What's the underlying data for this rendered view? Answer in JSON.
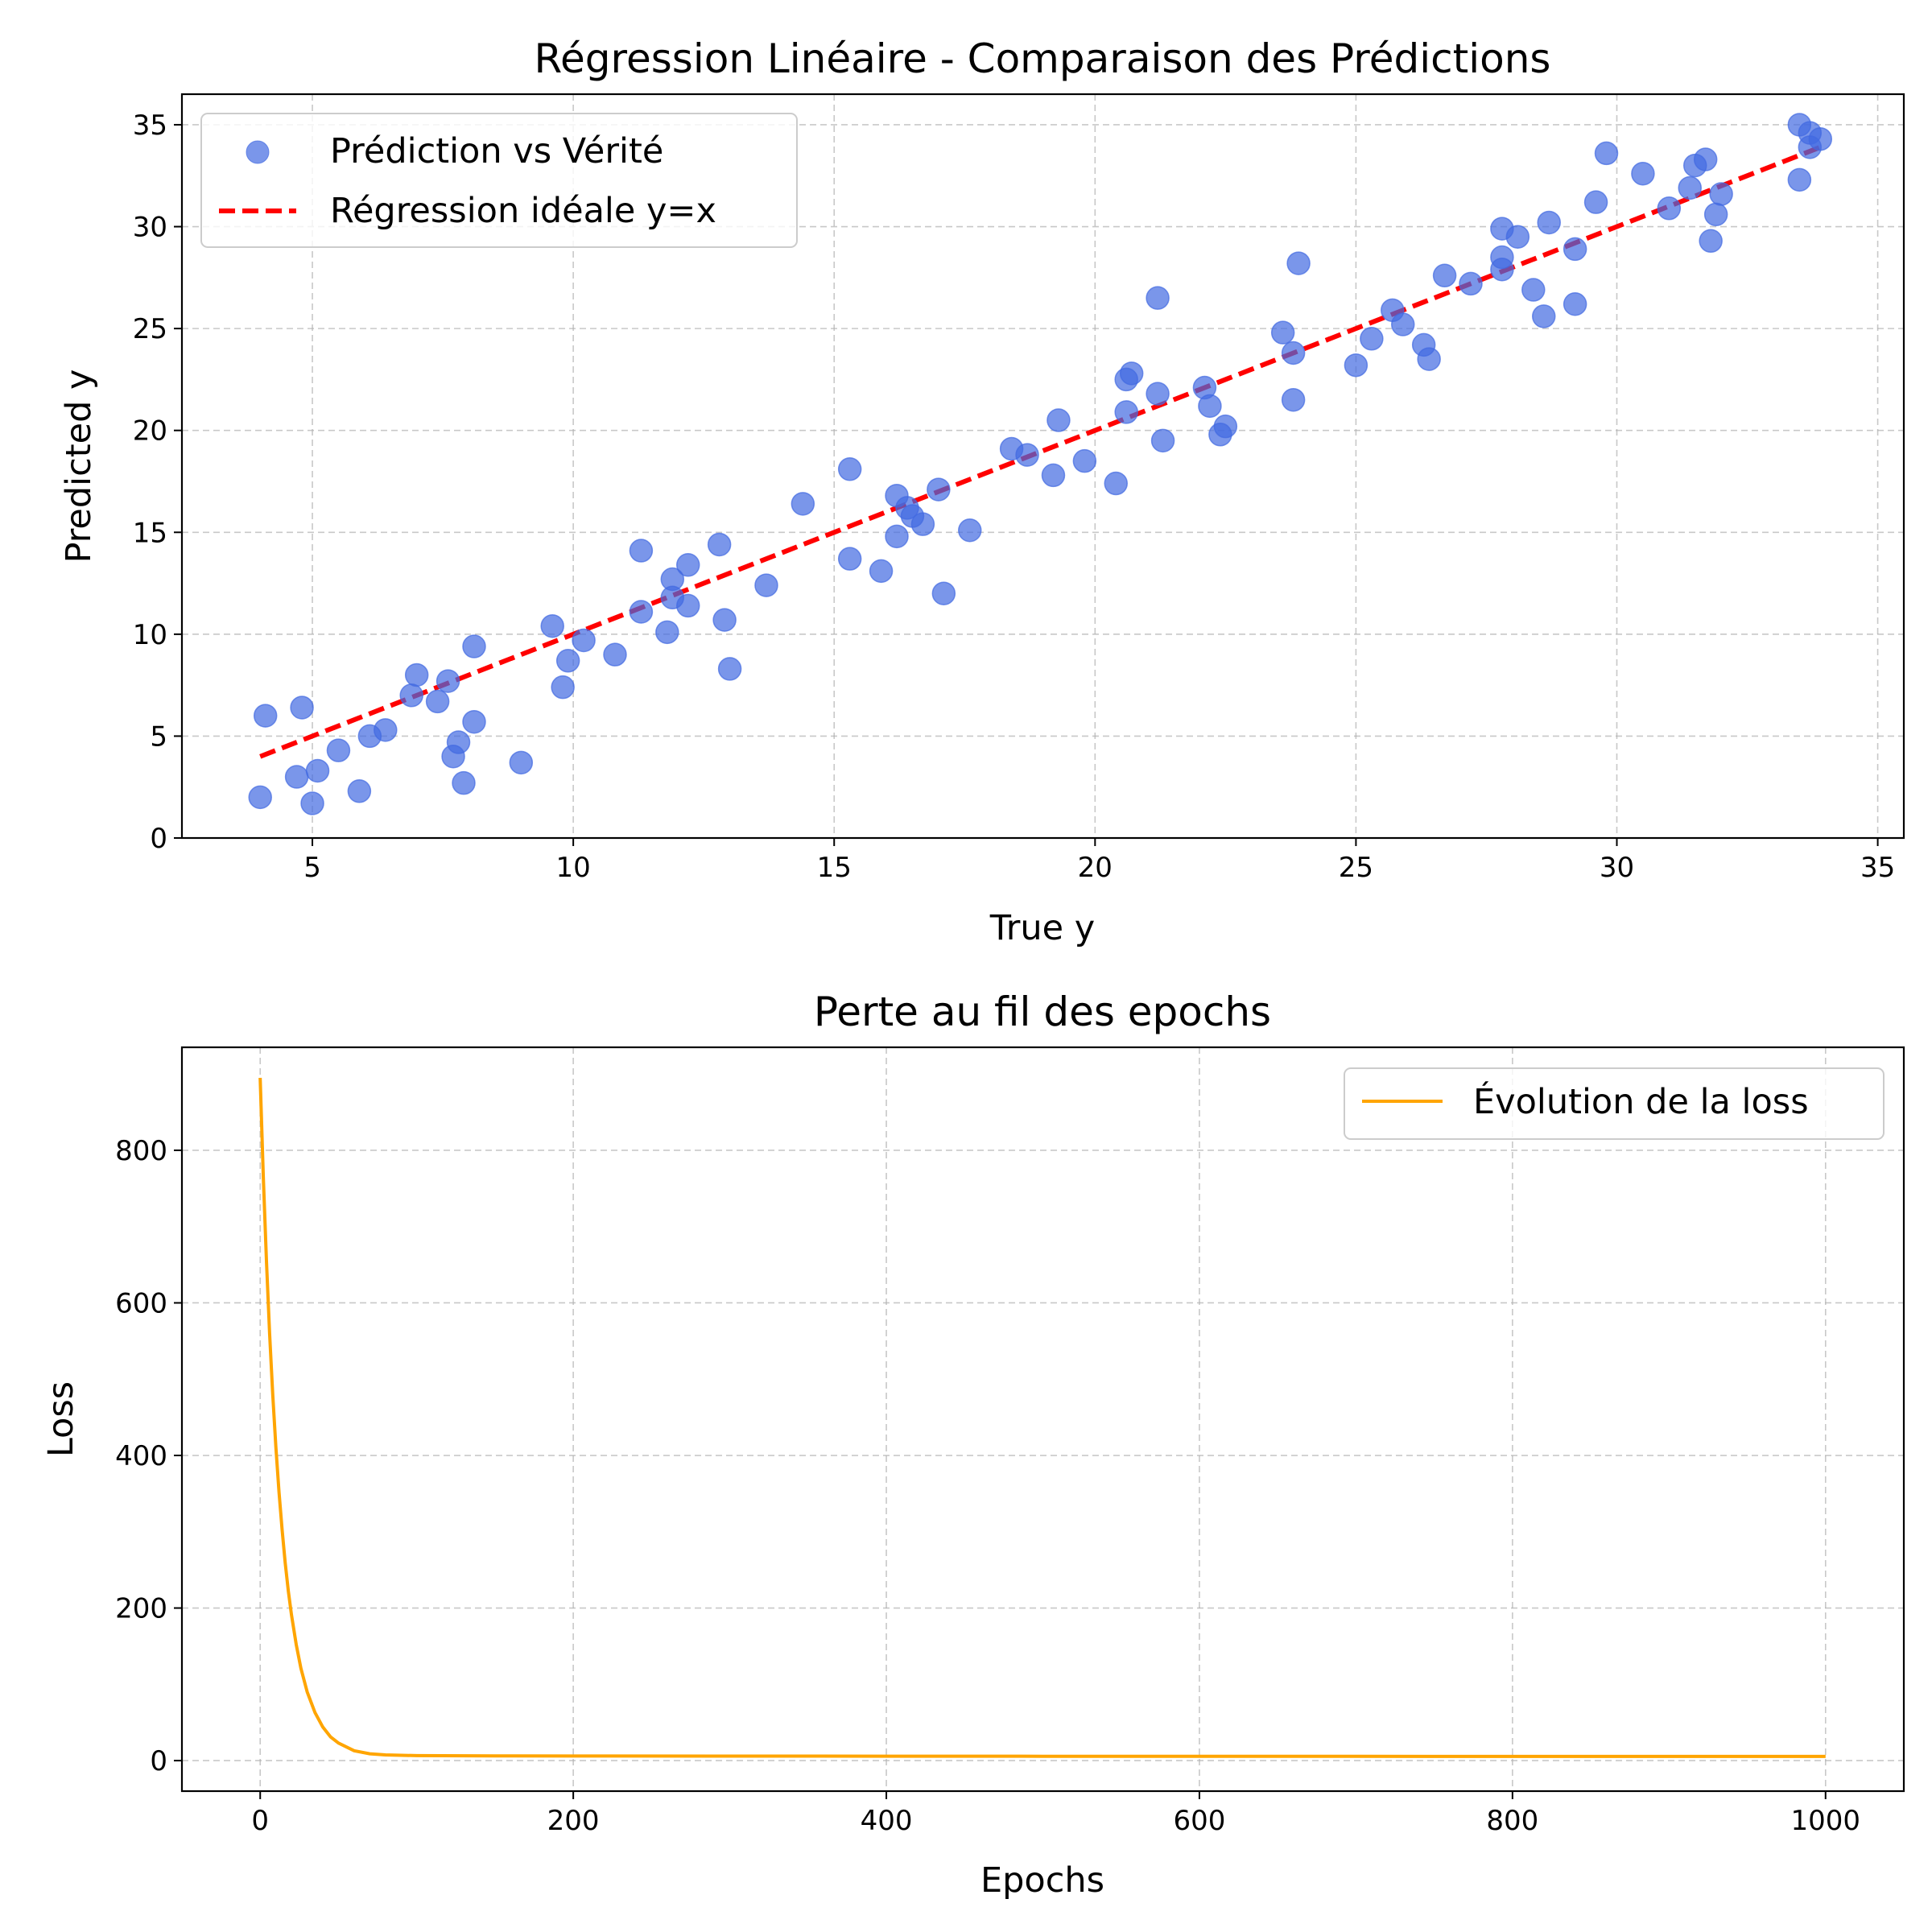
{
  "chart_data": [
    {
      "type": "scatter",
      "title": "Régression Linéaire - Comparaison des Prédictions",
      "xlabel": "True y",
      "ylabel": "Predicted y",
      "xlim": [
        2.5,
        35.5
      ],
      "ylim": [
        0,
        36.5
      ],
      "xticks": [
        5,
        10,
        15,
        20,
        25,
        30,
        35
      ],
      "yticks": [
        0,
        5,
        10,
        15,
        20,
        25,
        30,
        35
      ],
      "grid": true,
      "legend_position": "top-left",
      "series": [
        {
          "name": "Prédiction vs Vérité",
          "kind": "scatter",
          "color": "#4169e1",
          "points": [
            [
              4.0,
              2.0
            ],
            [
              4.1,
              6.0
            ],
            [
              4.7,
              3.0
            ],
            [
              4.8,
              6.4
            ],
            [
              5.0,
              1.7
            ],
            [
              5.1,
              3.3
            ],
            [
              5.5,
              4.3
            ],
            [
              5.9,
              2.3
            ],
            [
              6.1,
              5.0
            ],
            [
              6.4,
              5.3
            ],
            [
              6.9,
              7.0
            ],
            [
              7.0,
              8.0
            ],
            [
              7.4,
              6.7
            ],
            [
              7.6,
              7.7
            ],
            [
              7.7,
              4.0
            ],
            [
              7.8,
              4.7
            ],
            [
              7.9,
              2.7
            ],
            [
              8.1,
              9.4
            ],
            [
              8.1,
              5.7
            ],
            [
              9.0,
              3.7
            ],
            [
              9.6,
              10.4
            ],
            [
              9.8,
              7.4
            ],
            [
              9.9,
              8.7
            ],
            [
              10.2,
              9.7
            ],
            [
              10.8,
              9.0
            ],
            [
              11.3,
              14.1
            ],
            [
              11.3,
              11.1
            ],
            [
              11.8,
              10.1
            ],
            [
              11.9,
              12.7
            ],
            [
              11.9,
              11.8
            ],
            [
              12.2,
              13.4
            ],
            [
              12.2,
              11.4
            ],
            [
              12.8,
              14.4
            ],
            [
              12.9,
              10.7
            ],
            [
              13.0,
              8.3
            ],
            [
              13.7,
              12.4
            ],
            [
              14.4,
              16.4
            ],
            [
              15.3,
              18.1
            ],
            [
              15.3,
              13.7
            ],
            [
              15.9,
              13.1
            ],
            [
              16.2,
              16.8
            ],
            [
              16.2,
              14.8
            ],
            [
              16.4,
              16.2
            ],
            [
              16.5,
              15.8
            ],
            [
              16.7,
              15.4
            ],
            [
              17.0,
              17.1
            ],
            [
              17.1,
              12.0
            ],
            [
              17.6,
              15.1
            ],
            [
              18.4,
              19.1
            ],
            [
              18.7,
              18.8
            ],
            [
              19.2,
              17.8
            ],
            [
              19.3,
              20.5
            ],
            [
              19.8,
              18.5
            ],
            [
              20.4,
              17.4
            ],
            [
              20.6,
              22.5
            ],
            [
              20.6,
              20.9
            ],
            [
              20.7,
              22.8
            ],
            [
              21.2,
              26.5
            ],
            [
              21.2,
              21.8
            ],
            [
              21.3,
              19.5
            ],
            [
              22.1,
              22.1
            ],
            [
              22.2,
              21.2
            ],
            [
              22.4,
              19.8
            ],
            [
              22.5,
              20.2
            ],
            [
              23.6,
              24.8
            ],
            [
              23.8,
              23.8
            ],
            [
              23.8,
              21.5
            ],
            [
              23.9,
              28.2
            ],
            [
              25.0,
              23.2
            ],
            [
              25.3,
              24.5
            ],
            [
              25.7,
              25.9
            ],
            [
              25.9,
              25.2
            ],
            [
              26.3,
              24.2
            ],
            [
              26.4,
              23.5
            ],
            [
              26.7,
              27.6
            ],
            [
              27.2,
              27.2
            ],
            [
              27.8,
              29.9
            ],
            [
              27.8,
              28.5
            ],
            [
              27.8,
              27.9
            ],
            [
              28.1,
              29.5
            ],
            [
              28.4,
              26.9
            ],
            [
              28.6,
              25.6
            ],
            [
              28.7,
              30.2
            ],
            [
              29.2,
              28.9
            ],
            [
              29.2,
              26.2
            ],
            [
              29.6,
              31.2
            ],
            [
              29.8,
              33.6
            ],
            [
              30.5,
              32.6
            ],
            [
              31.0,
              30.9
            ],
            [
              31.4,
              31.9
            ],
            [
              31.5,
              33.0
            ],
            [
              31.7,
              33.3
            ],
            [
              31.8,
              29.3
            ],
            [
              31.9,
              30.6
            ],
            [
              32.0,
              31.6
            ],
            [
              33.5,
              35.0
            ],
            [
              33.5,
              32.3
            ],
            [
              33.7,
              34.6
            ],
            [
              33.7,
              33.9
            ],
            [
              33.9,
              34.3
            ]
          ]
        },
        {
          "name": "Régression idéale y=x",
          "kind": "line",
          "style": "dashed",
          "color": "#ff0000",
          "x": [
            4.0,
            34.0
          ],
          "y": [
            4.0,
            34.0
          ]
        }
      ]
    },
    {
      "type": "line",
      "title": "Perte au fil des epochs",
      "xlabel": "Epochs",
      "ylabel": "Loss",
      "xlim": [
        -50,
        1050
      ],
      "ylim": [
        -40,
        935
      ],
      "xticks": [
        0,
        200,
        400,
        600,
        800,
        1000
      ],
      "yticks": [
        0,
        200,
        400,
        600,
        800
      ],
      "grid": true,
      "legend_position": "top-right",
      "series": [
        {
          "name": "Évolution de la loss",
          "color": "#ffa500",
          "x": [
            0,
            2,
            4,
            6,
            8,
            10,
            12,
            14,
            16,
            18,
            20,
            23,
            26,
            30,
            35,
            40,
            45,
            50,
            60,
            70,
            80,
            100,
            150,
            200,
            300,
            400,
            500,
            600,
            700,
            800,
            900,
            1000
          ],
          "y": [
            895,
            765,
            655,
            560,
            480,
            411,
            352,
            302,
            259,
            222,
            191,
            152,
            121,
            90,
            63,
            44,
            31,
            23,
            13,
            9,
            7.5,
            6.5,
            6.2,
            6.0,
            5.9,
            5.8,
            5.7,
            5.6,
            5.6,
            5.5,
            5.5,
            5.5
          ]
        }
      ]
    }
  ]
}
